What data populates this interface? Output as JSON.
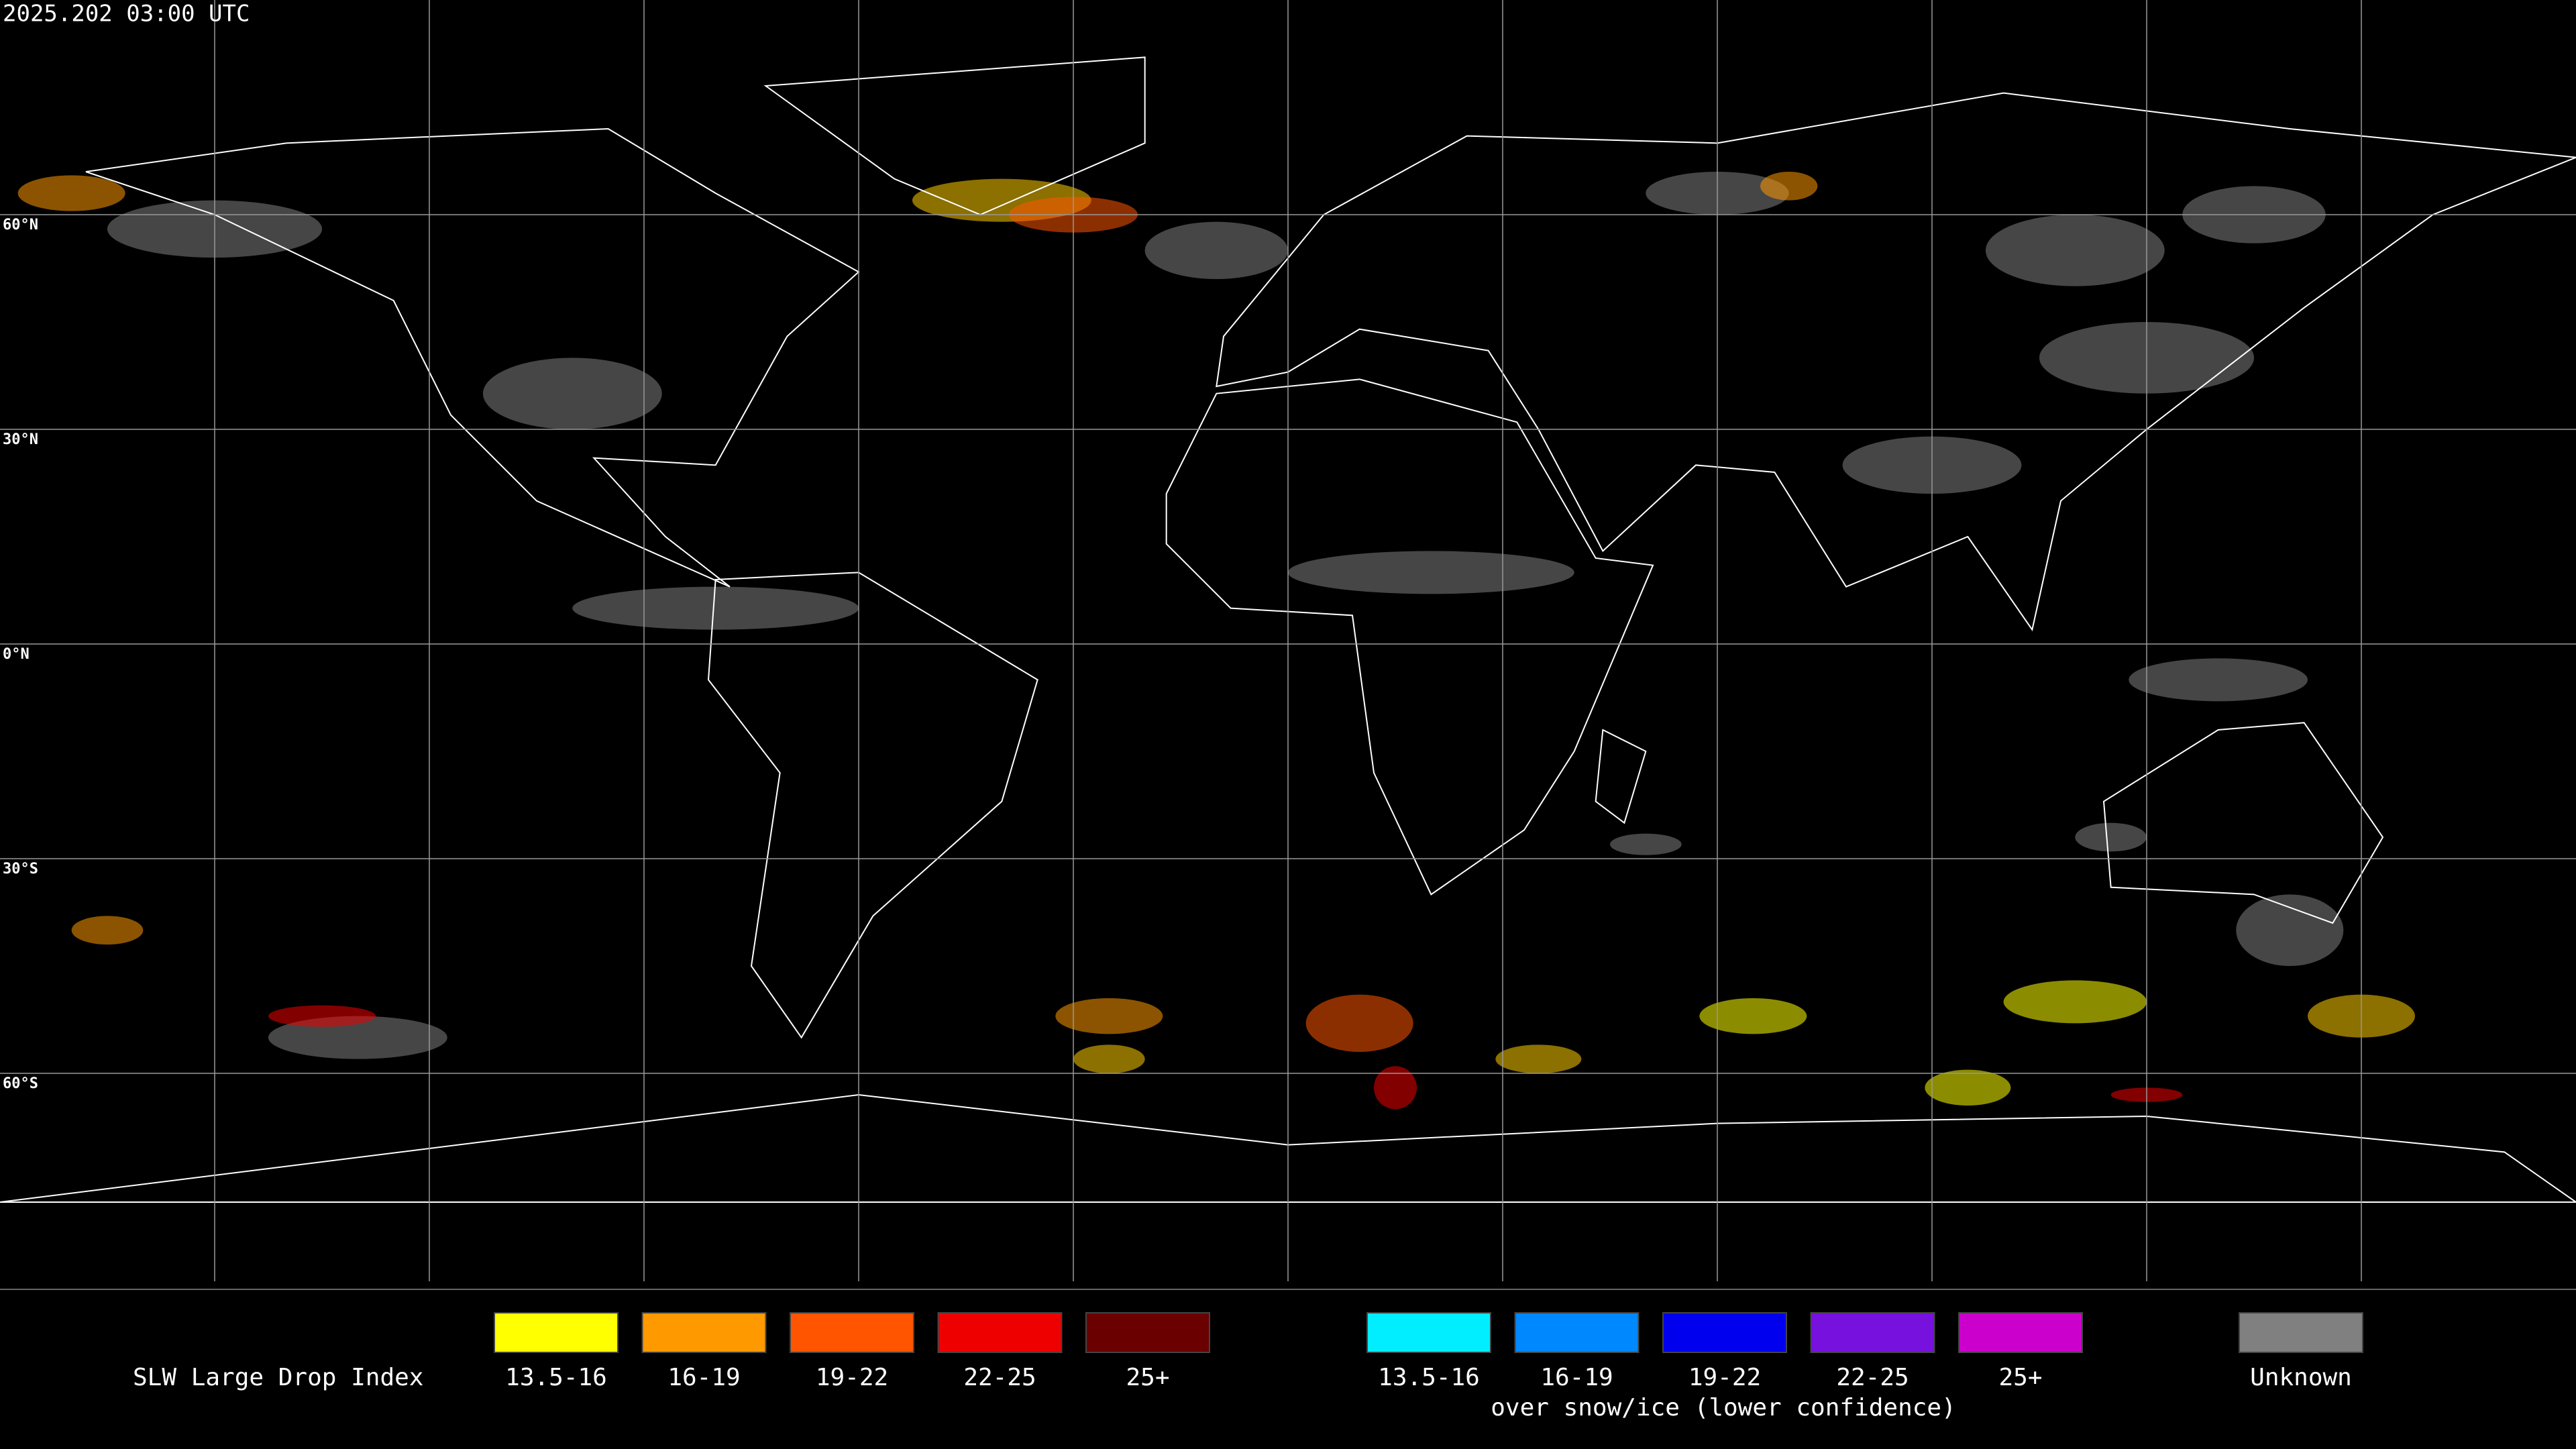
{
  "header": {
    "title": "2025.202 03:00 UTC"
  },
  "map": {
    "latitude_labels": [
      "60°N",
      "30°N",
      "0°N",
      "30°S",
      "60°S"
    ]
  },
  "legend": {
    "label": "SLW Large Drop Index",
    "items": [
      {
        "label": "13.5-16",
        "color": "#ffff00"
      },
      {
        "label": "16-19",
        "color": "#ff9900"
      },
      {
        "label": "19-22",
        "color": "#ff5500"
      },
      {
        "label": "22-25",
        "color": "#ee0000"
      },
      {
        "label": "25+",
        "color": "#6b0000"
      }
    ],
    "snow_items": [
      {
        "label": "13.5-16",
        "color": "#00eeff"
      },
      {
        "label": "16-19",
        "color": "#0088ff"
      },
      {
        "label": "19-22",
        "color": "#0000ee"
      },
      {
        "label": "22-25",
        "color": "#7711dd"
      },
      {
        "label": "25+",
        "color": "#cc00cc"
      }
    ],
    "snow_note": "over snow/ice (lower confidence)",
    "unknown": {
      "label": "Unknown",
      "color": "#808080"
    }
  }
}
